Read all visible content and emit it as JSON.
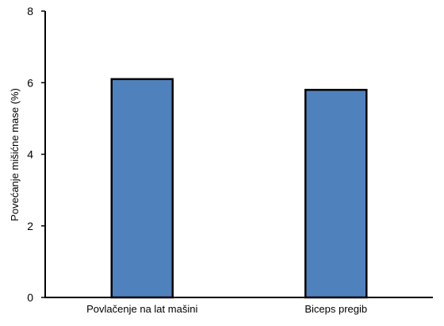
{
  "chart_data": {
    "type": "bar",
    "title": "",
    "xlabel": "",
    "ylabel": "Povećanje mišićne mase (%)",
    "categories": [
      "Povlačenje na lat mašini",
      "Biceps pregib"
    ],
    "values": [
      6.1,
      5.8
    ],
    "ylim": [
      0,
      8
    ],
    "yticks": [
      0,
      2,
      4,
      6,
      8
    ],
    "grid": false,
    "legend": "none",
    "bar_color": "#4f81bd",
    "bar_edge_color": "#000000"
  }
}
